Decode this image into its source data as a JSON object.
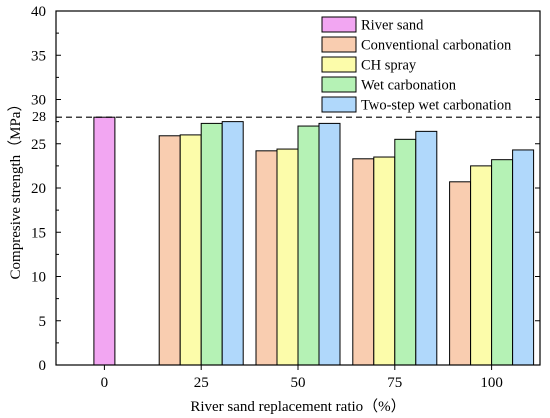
{
  "chart_data": {
    "type": "bar",
    "categories": [
      "0",
      "25",
      "50",
      "75",
      "100"
    ],
    "xlabel": "River sand replacement ratio（%）",
    "ylabel": "Compresive strength（MPa）",
    "ylim": [
      0,
      40
    ],
    "yticks": [
      0,
      5,
      10,
      15,
      20,
      25,
      30,
      35,
      40
    ],
    "reference_line": {
      "value": 28,
      "label": "28",
      "style": "dashed"
    },
    "legend_position": "top-right",
    "series": [
      {
        "name": "River sand",
        "color": "#f2a6f2",
        "values": [
          28.0,
          null,
          null,
          null,
          null
        ]
      },
      {
        "name": "Conventional carbonation",
        "color": "#f9cdb0",
        "values": [
          null,
          25.9,
          24.2,
          23.3,
          20.7
        ]
      },
      {
        "name": "CH spray",
        "color": "#fcfcaa",
        "values": [
          null,
          26.0,
          24.4,
          23.5,
          22.5
        ]
      },
      {
        "name": "Wet carbonation",
        "color": "#b5f2b5",
        "values": [
          null,
          27.3,
          27.0,
          25.5,
          23.2
        ]
      },
      {
        "name": "Two-step wet carbonation",
        "color": "#b0d8fb",
        "values": [
          null,
          27.5,
          27.3,
          26.4,
          24.3
        ]
      }
    ]
  }
}
